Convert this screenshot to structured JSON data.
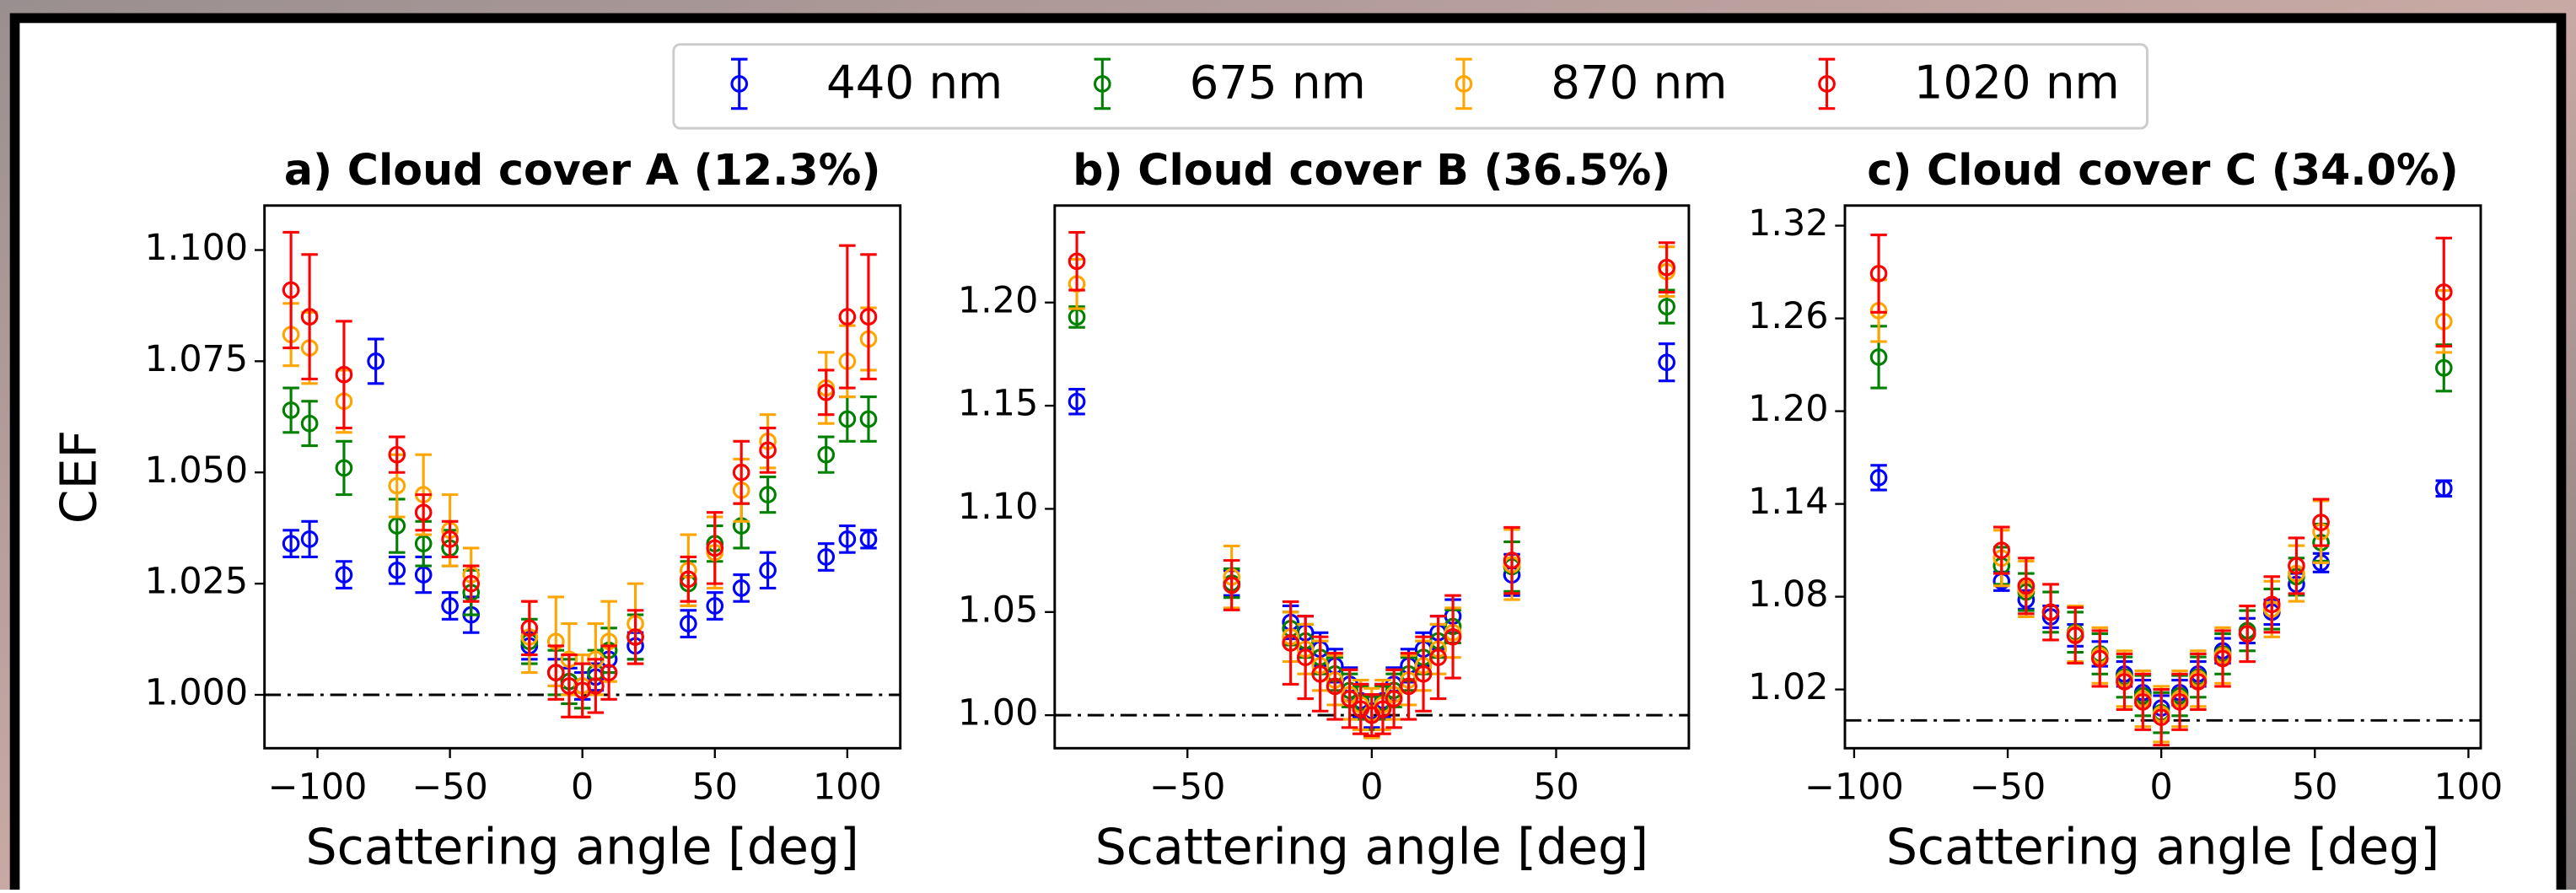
{
  "chart_data": [
    {
      "type": "scatter",
      "title": "a) Cloud cover A (12.3%)",
      "xlabel": "Scattering angle [deg]",
      "ylabel": "CEF",
      "xlim": [
        -120,
        120
      ],
      "ylim": [
        0.988,
        1.11
      ],
      "xticks": [
        {
          "value": -100,
          "label": "−100"
        },
        {
          "value": -50,
          "label": "−50"
        },
        0,
        50,
        100
      ],
      "yticks": [
        {
          "value": 1.0,
          "label": "1.000"
        },
        1.025,
        {
          "value": 1.05,
          "label": "1.050"
        },
        1.075,
        {
          "value": 1.1,
          "label": "1.100"
        }
      ],
      "hline": 1,
      "x": [
        -110,
        -103,
        -90,
        -78,
        -70,
        -60,
        -50,
        -42,
        -20,
        -10,
        -5,
        0,
        5,
        10,
        20,
        40,
        50,
        60,
        70,
        92,
        100,
        108
      ],
      "series": [
        {
          "name": "440 nm",
          "color": "#0000ff",
          "values": [
            1.034,
            1.035,
            1.027,
            1.075,
            1.028,
            1.027,
            1.02,
            1.018,
            1.011,
            1.005,
            1.003,
            1.002,
            1.004,
            1.008,
            1.011,
            1.016,
            1.02,
            1.024,
            1.028,
            1.031,
            1.035,
            1.035
          ],
          "errors": [
            0.003,
            0.004,
            0.003,
            0.005,
            0.003,
            0.004,
            0.003,
            0.004,
            0.003,
            0.003,
            0.003,
            0.003,
            0.003,
            0.003,
            0.003,
            0.003,
            0.003,
            0.003,
            0.004,
            0.003,
            0.003,
            0.002
          ]
        },
        {
          "name": "675 nm",
          "color": "#008000",
          "values": [
            1.064,
            1.061,
            1.051,
            null,
            1.038,
            1.034,
            1.033,
            1.023,
            1.012,
            1.005,
            1.003,
            1.002,
            1.005,
            1.01,
            1.013,
            1.025,
            1.034,
            1.038,
            1.045,
            1.054,
            1.062,
            1.062
          ],
          "errors": [
            0.005,
            0.005,
            0.006,
            null,
            0.006,
            0.005,
            0.004,
            0.005,
            0.005,
            0.005,
            0.005,
            0.005,
            0.005,
            0.005,
            0.005,
            0.005,
            0.004,
            0.005,
            0.004,
            0.004,
            0.005,
            0.005
          ]
        },
        {
          "name": "870 nm",
          "color": "#ffa500",
          "values": [
            1.081,
            1.078,
            1.066,
            null,
            1.047,
            1.045,
            1.037,
            1.027,
            1.013,
            1.012,
            1.008,
            1.002,
            1.008,
            1.012,
            1.016,
            1.028,
            1.032,
            1.046,
            1.057,
            1.069,
            1.075,
            1.08
          ],
          "errors": [
            0.007,
            0.008,
            0.007,
            null,
            0.007,
            0.009,
            0.008,
            0.006,
            0.008,
            0.01,
            0.008,
            0.007,
            0.008,
            0.009,
            0.009,
            0.008,
            0.008,
            0.007,
            0.006,
            0.008,
            0.008,
            0.007
          ]
        },
        {
          "name": "1020 nm",
          "color": "#ff0000",
          "values": [
            1.091,
            1.085,
            1.072,
            null,
            1.054,
            1.041,
            1.035,
            1.025,
            1.015,
            1.005,
            1.002,
            1.001,
            1.002,
            1.005,
            1.013,
            1.026,
            1.033,
            1.05,
            1.055,
            1.068,
            1.085,
            1.085
          ],
          "errors": [
            0.013,
            0.014,
            0.012,
            null,
            0.004,
            0.004,
            0.004,
            0.004,
            0.006,
            0.006,
            0.007,
            0.006,
            0.006,
            0.006,
            0.006,
            0.005,
            0.008,
            0.007,
            0.005,
            0.005,
            0.016,
            0.014
          ]
        }
      ]
    },
    {
      "type": "scatter",
      "title": "b) Cloud cover B (36.5%)",
      "xlabel": "Scattering angle [deg]",
      "xlim": [
        -86,
        86
      ],
      "ylim": [
        0.984,
        1.247
      ],
      "xticks": [
        {
          "value": -50,
          "label": "−50"
        },
        0,
        50
      ],
      "yticks": [
        {
          "value": 1.0,
          "label": "1.00"
        },
        1.05,
        {
          "value": 1.1,
          "label": "1.10"
        },
        1.15,
        {
          "value": 1.2,
          "label": "1.20"
        }
      ],
      "hline": 1,
      "x": [
        -80,
        -38,
        -22,
        -18,
        -14,
        -10,
        -6,
        -3,
        0,
        3,
        6,
        10,
        14,
        18,
        22,
        38,
        80
      ],
      "series": [
        {
          "color": "#0000ff",
          "values": [
            1.152,
            1.064,
            1.045,
            1.04,
            1.032,
            1.024,
            1.015,
            1.007,
            1.002,
            1.007,
            1.015,
            1.024,
            1.032,
            1.04,
            1.048,
            1.068,
            1.171
          ],
          "errors": [
            0.006,
            0.006,
            0.008,
            0.008,
            0.008,
            0.008,
            0.008,
            0.008,
            0.008,
            0.008,
            0.008,
            0.008,
            0.008,
            0.008,
            0.008,
            0.01,
            0.009
          ]
        },
        {
          "color": "#008000",
          "values": [
            1.193,
            1.064,
            1.042,
            1.036,
            1.028,
            1.02,
            1.012,
            1.006,
            1.001,
            1.006,
            1.012,
            1.02,
            1.028,
            1.036,
            1.043,
            1.072,
            1.198
          ],
          "errors": [
            0.005,
            0.007,
            0.008,
            0.008,
            0.008,
            0.008,
            0.008,
            0.008,
            0.008,
            0.008,
            0.008,
            0.008,
            0.008,
            0.008,
            0.008,
            0.012,
            0.008
          ]
        },
        {
          "color": "#ffa500",
          "values": [
            1.209,
            1.067,
            1.038,
            1.032,
            1.024,
            1.017,
            1.01,
            1.005,
            1.001,
            1.005,
            1.01,
            1.017,
            1.024,
            1.032,
            1.04,
            1.073,
            1.215
          ],
          "errors": [
            0.012,
            0.015,
            0.012,
            0.012,
            0.012,
            0.012,
            0.012,
            0.012,
            0.012,
            0.012,
            0.012,
            0.012,
            0.012,
            0.012,
            0.012,
            0.017,
            0.012
          ]
        },
        {
          "color": "#ff0000",
          "values": [
            1.22,
            1.063,
            1.035,
            1.028,
            1.02,
            1.014,
            1.008,
            1.003,
            1.0,
            1.003,
            1.008,
            1.014,
            1.02,
            1.028,
            1.038,
            1.075,
            1.217
          ],
          "errors": [
            0.014,
            0.012,
            0.02,
            0.02,
            0.018,
            0.016,
            0.014,
            0.012,
            0.01,
            0.012,
            0.014,
            0.016,
            0.018,
            0.02,
            0.02,
            0.016,
            0.012
          ]
        }
      ]
    },
    {
      "type": "scatter",
      "title": "c) Cloud cover C (34.0%)",
      "xlabel": "Scattering angle [deg]",
      "xlim": [
        -103,
        104
      ],
      "ylim": [
        0.982,
        1.333
      ],
      "xticks": [
        {
          "value": -100,
          "label": "−100"
        },
        {
          "value": -50,
          "label": "−50"
        },
        0,
        50,
        100
      ],
      "yticks": [
        1.02,
        1.08,
        1.14,
        {
          "value": 1.2,
          "label": "1.20"
        },
        1.26,
        1.32
      ],
      "hline": 1,
      "x": [
        -92,
        -52,
        -44,
        -36,
        -28,
        -20,
        -12,
        -6,
        0,
        6,
        12,
        20,
        28,
        36,
        44,
        52,
        92
      ],
      "series": [
        {
          "color": "#0000ff",
          "values": [
            1.157,
            1.09,
            1.078,
            1.067,
            1.055,
            1.043,
            1.03,
            1.018,
            1.008,
            1.018,
            1.03,
            1.045,
            1.058,
            1.07,
            1.088,
            1.102,
            1.15
          ],
          "errors": [
            0.008,
            0.006,
            0.006,
            0.007,
            0.007,
            0.008,
            0.008,
            0.008,
            0.008,
            0.008,
            0.008,
            0.008,
            0.008,
            0.008,
            0.007,
            0.006,
            0.005
          ]
        },
        {
          "color": "#008000",
          "values": [
            1.235,
            1.1,
            1.083,
            1.07,
            1.057,
            1.043,
            1.028,
            1.016,
            1.005,
            1.016,
            1.028,
            1.043,
            1.058,
            1.072,
            1.093,
            1.115,
            1.228
          ],
          "errors": [
            0.02,
            0.012,
            0.012,
            0.013,
            0.013,
            0.013,
            0.013,
            0.013,
            0.013,
            0.013,
            0.013,
            0.013,
            0.013,
            0.013,
            0.012,
            0.012,
            0.015
          ]
        },
        {
          "color": "#ffa500",
          "values": [
            1.265,
            1.105,
            1.085,
            1.07,
            1.056,
            1.042,
            1.027,
            1.014,
            1.004,
            1.014,
            1.027,
            1.042,
            1.056,
            1.072,
            1.095,
            1.122,
            1.258
          ],
          "errors": [
            0.02,
            0.018,
            0.018,
            0.018,
            0.018,
            0.018,
            0.018,
            0.018,
            0.018,
            0.018,
            0.018,
            0.018,
            0.018,
            0.018,
            0.018,
            0.02,
            0.02
          ]
        },
        {
          "color": "#ff0000",
          "values": [
            1.289,
            1.11,
            1.087,
            1.07,
            1.055,
            1.04,
            1.025,
            1.012,
            1.002,
            1.012,
            1.025,
            1.04,
            1.056,
            1.075,
            1.1,
            1.128,
            1.277
          ],
          "errors": [
            0.025,
            0.015,
            0.018,
            0.018,
            0.018,
            0.018,
            0.018,
            0.018,
            0.018,
            0.018,
            0.018,
            0.018,
            0.018,
            0.018,
            0.018,
            0.015,
            0.035
          ]
        }
      ]
    }
  ]
}
